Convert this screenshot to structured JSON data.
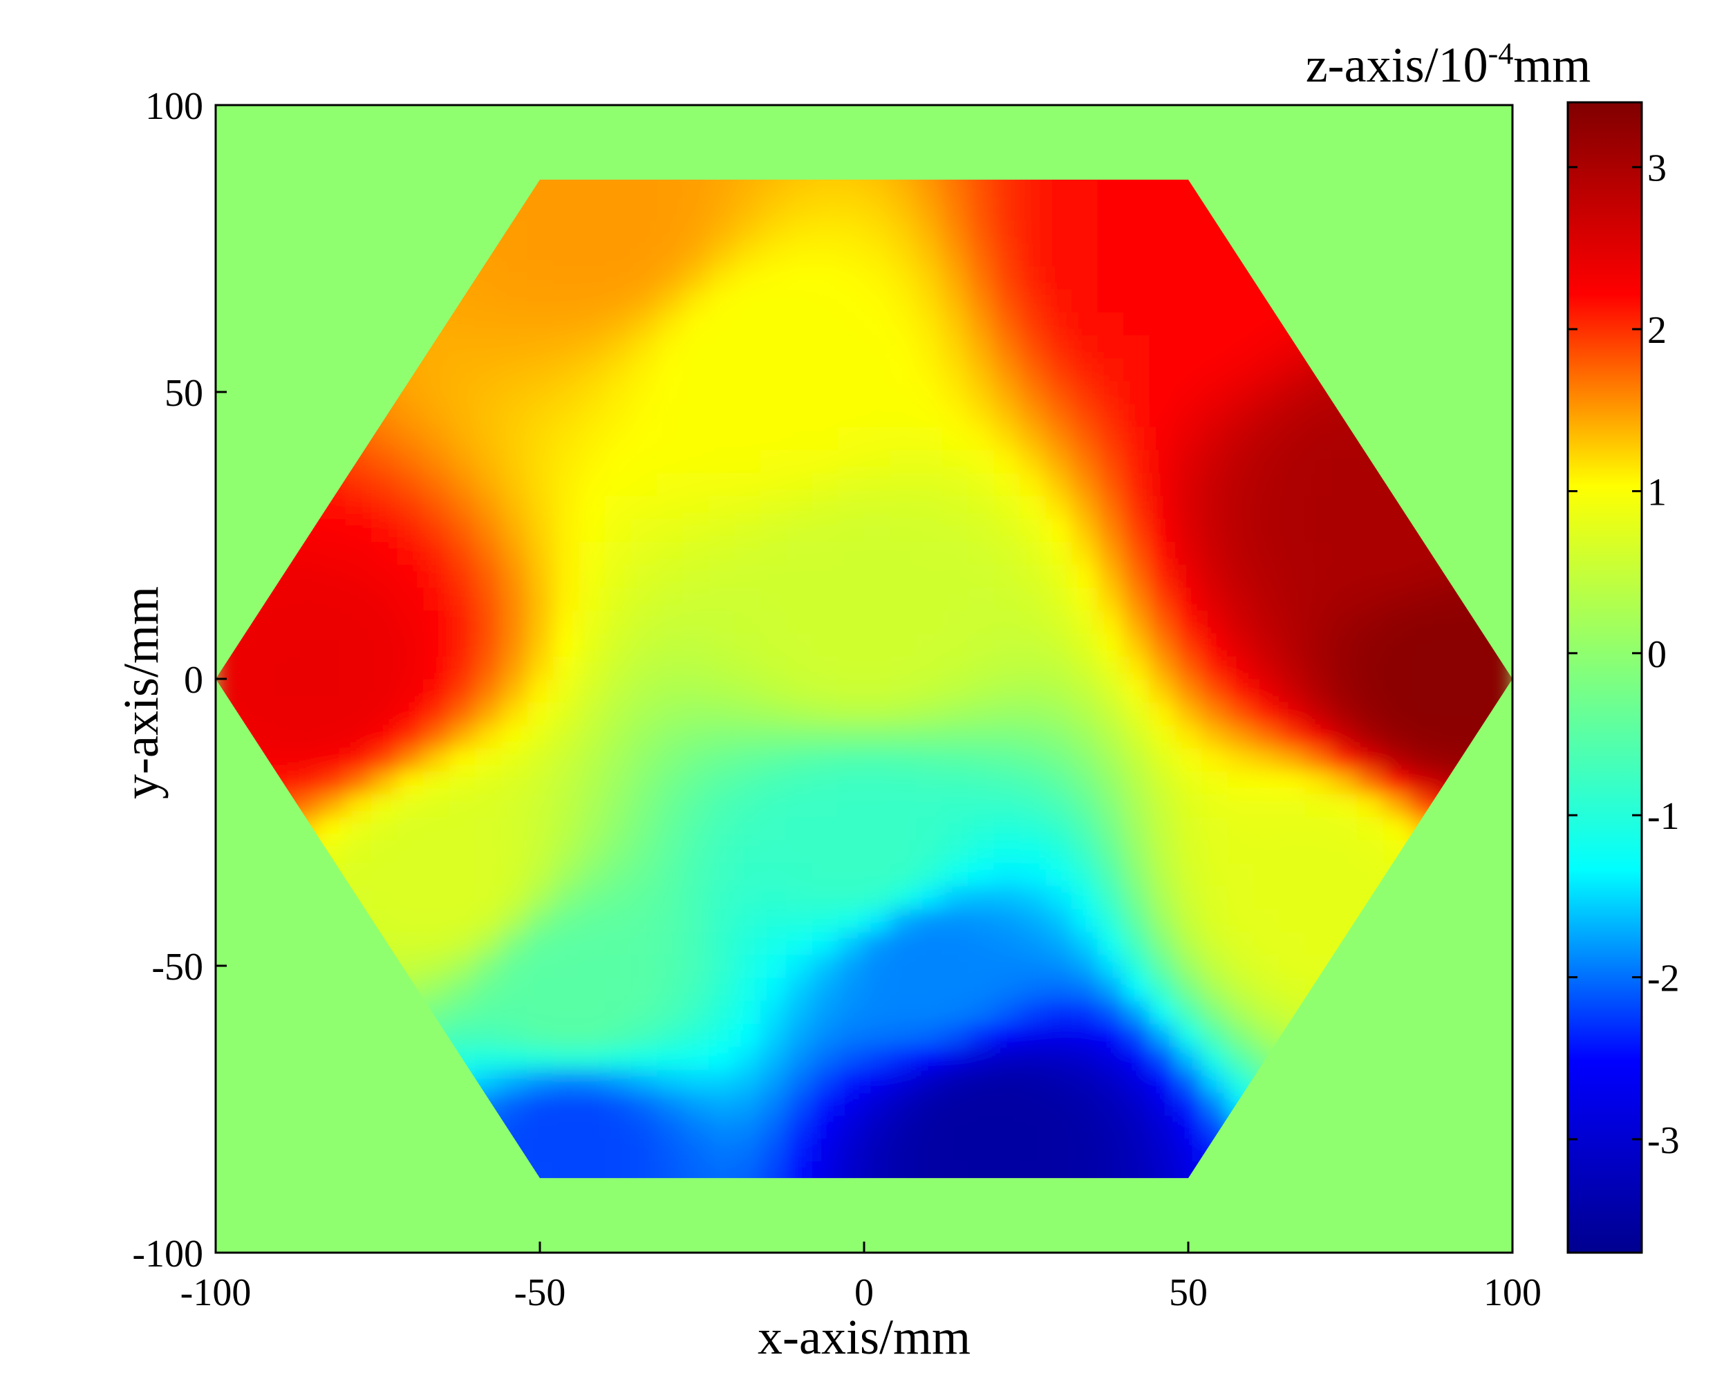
{
  "chart_data": {
    "type": "heatmap",
    "xlabel": "x-axis/mm",
    "ylabel": "y-axis/mm",
    "colorbar_label": {
      "prefix": "z-axis/10",
      "superscript": "-4",
      "suffix": "mm"
    },
    "xlim": [
      -100,
      100
    ],
    "ylim": [
      -100,
      100
    ],
    "zlim": [
      -3.7,
      3.4
    ],
    "xticks": [
      -100,
      -50,
      0,
      50,
      100
    ],
    "yticks": [
      -100,
      -50,
      0,
      50,
      100
    ],
    "colorbar_ticks": [
      -3,
      -2,
      -1,
      0,
      1,
      2,
      3
    ],
    "background_value": 0,
    "region": {
      "shape": "hexagon",
      "vertices": [
        [
          -100,
          0
        ],
        [
          -50,
          87
        ],
        [
          50,
          87
        ],
        [
          100,
          0
        ],
        [
          50,
          -87
        ],
        [
          -50,
          -87
        ]
      ]
    },
    "colormap": "jet",
    "colormap_stops": [
      "#00008f",
      "#0000ff",
      "#00ffff",
      "#7fff7f",
      "#ffff00",
      "#ff0000",
      "#800000"
    ],
    "surface_samples": [
      {
        "x": -85,
        "y": 0,
        "z": 2.4
      },
      {
        "x": 90,
        "y": 0,
        "z": 3.3
      },
      {
        "x": 80,
        "y": 30,
        "z": 3.0
      },
      {
        "x": 50,
        "y": 75,
        "z": 2.2
      },
      {
        "x": -15,
        "y": 55,
        "z": 1.0
      },
      {
        "x": -40,
        "y": 80,
        "z": 1.5
      },
      {
        "x": 0,
        "y": 10,
        "z": 0.6
      },
      {
        "x": 0,
        "y": -30,
        "z": -0.8
      },
      {
        "x": 10,
        "y": -50,
        "z": -1.9
      },
      {
        "x": 20,
        "y": -80,
        "z": -3.5
      },
      {
        "x": -45,
        "y": -55,
        "z": -0.5
      },
      {
        "x": -45,
        "y": -80,
        "z": -2.2
      },
      {
        "x": -65,
        "y": -35,
        "z": 0.7
      },
      {
        "x": 70,
        "y": -35,
        "z": 0.8
      }
    ]
  }
}
